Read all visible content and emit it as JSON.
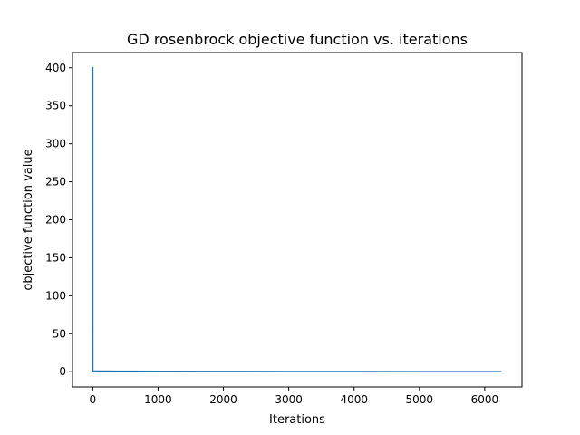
{
  "chart_data": {
    "type": "line",
    "title": "GD rosenbrock objective function vs. iterations",
    "xlabel": "Iterations",
    "ylabel": "objective function value",
    "xlim": [
      -310,
      6570
    ],
    "ylim": [
      -20,
      420
    ],
    "xticks": [
      0,
      1000,
      2000,
      3000,
      4000,
      5000,
      6000
    ],
    "yticks": [
      0,
      50,
      100,
      150,
      200,
      250,
      300,
      350,
      400
    ],
    "grid": false,
    "legend": "none",
    "series": [
      {
        "color": "#1f77b4",
        "x": [
          0,
          1,
          5,
          20,
          100,
          500,
          1000,
          2000,
          3000,
          4000,
          5000,
          6000,
          6260
        ],
        "y": [
          401,
          1.0,
          0.9,
          0.85,
          0.8,
          0.6,
          0.5,
          0.35,
          0.25,
          0.15,
          0.08,
          0.03,
          0.02
        ]
      }
    ]
  }
}
